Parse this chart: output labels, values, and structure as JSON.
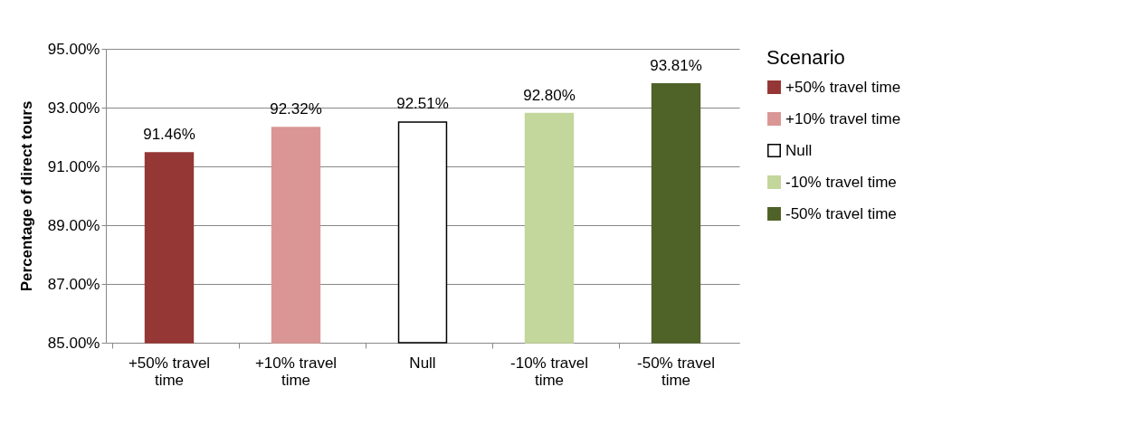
{
  "chart_data": {
    "type": "bar",
    "ylabel": "Percentage of direct tours",
    "legend_title": "Scenario",
    "categories": [
      "+50% travel time",
      "+10% travel time",
      "Null",
      "-10% travel time",
      "-50% travel time"
    ],
    "series": [
      {
        "name": "+50% travel time",
        "color": "#953735",
        "values": [
          91.46,
          null,
          null,
          null,
          null
        ],
        "value_labels": [
          "91.46%",
          null,
          null,
          null,
          null
        ]
      },
      {
        "name": "+10% travel time",
        "color": "#d99694",
        "values": [
          null,
          92.32,
          null,
          null,
          null
        ],
        "value_labels": [
          null,
          "92.32%",
          null,
          null,
          null
        ]
      },
      {
        "name": "Null",
        "color": "#ffffff",
        "values": [
          null,
          null,
          92.51,
          null,
          null
        ],
        "value_labels": [
          null,
          null,
          "92.51%",
          null,
          null
        ]
      },
      {
        "name": "-10% travel time",
        "color": "#c3d69b",
        "values": [
          null,
          null,
          null,
          92.8,
          null
        ],
        "value_labels": [
          null,
          null,
          null,
          "92.80%",
          null
        ]
      },
      {
        "name": "-50% travel time",
        "color": "#4f6228",
        "values": [
          null,
          null,
          null,
          null,
          93.81
        ],
        "value_labels": [
          null,
          null,
          null,
          null,
          "93.81%"
        ]
      }
    ],
    "ylim": [
      85,
      95
    ],
    "yticks": [
      {
        "value": 85,
        "label": "85.00%"
      },
      {
        "value": 87,
        "label": "87.00%"
      },
      {
        "value": 89,
        "label": "89.00%"
      },
      {
        "value": 91,
        "label": "91.00%"
      },
      {
        "value": 93,
        "label": "93.00%"
      },
      {
        "value": 95,
        "label": "95.00%"
      }
    ],
    "grid": "y",
    "legend": "right"
  }
}
